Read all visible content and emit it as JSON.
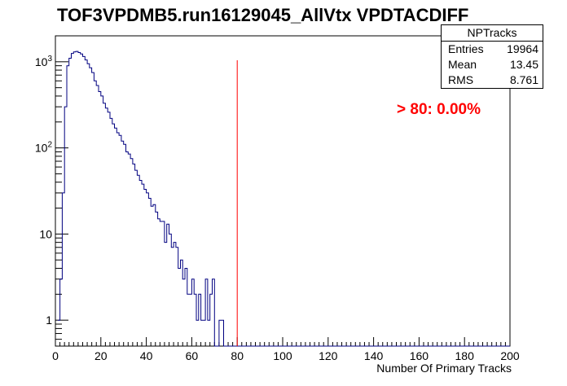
{
  "chart_data": {
    "type": "histogram",
    "title": "TOF3VPDMB5.run16129045_AllVtx VPDTACDIFF",
    "xlabel": "Number Of Primary Tracks",
    "ylabel": "",
    "xlim": [
      0,
      200
    ],
    "ylim": [
      0.5,
      2000
    ],
    "yscale": "log",
    "xticks": [
      "0",
      "20",
      "40",
      "60",
      "80",
      "100",
      "120",
      "140",
      "160",
      "180",
      "200"
    ],
    "yticks": [
      {
        "value": 1,
        "label": "1"
      },
      {
        "value": 10,
        "label": "10"
      },
      {
        "value": 100,
        "label": "10^2"
      },
      {
        "value": 1000,
        "label": "10^3"
      }
    ],
    "bin_width": 1,
    "bin_start": 1,
    "values": [
      1,
      3,
      30,
      300,
      900,
      1100,
      1250,
      1300,
      1320,
      1280,
      1230,
      1150,
      1050,
      950,
      850,
      750,
      600,
      530,
      450,
      400,
      330,
      290,
      260,
      220,
      190,
      170,
      150,
      140,
      120,
      110,
      90,
      85,
      75,
      65,
      55,
      48,
      42,
      38,
      33,
      30,
      26,
      21,
      22,
      18,
      15,
      14,
      14,
      8,
      13,
      10,
      7,
      8,
      7,
      4,
      5,
      3,
      4,
      2,
      2,
      3,
      2,
      1,
      2,
      1,
      1,
      3,
      1,
      2,
      3,
      0,
      0,
      1,
      1,
      0,
      0
    ],
    "line_color": "#000080",
    "cut_line": {
      "x": 80,
      "color": "#ff0000"
    },
    "annotation": {
      "text": "> 80: 0.00%",
      "color": "#ff0000"
    },
    "stats_box": {
      "name": "NPTracks",
      "rows": [
        {
          "label": "Entries",
          "value": "19964"
        },
        {
          "label": "Mean",
          "value": "13.45"
        },
        {
          "label": "RMS",
          "value": "8.761"
        }
      ]
    }
  }
}
